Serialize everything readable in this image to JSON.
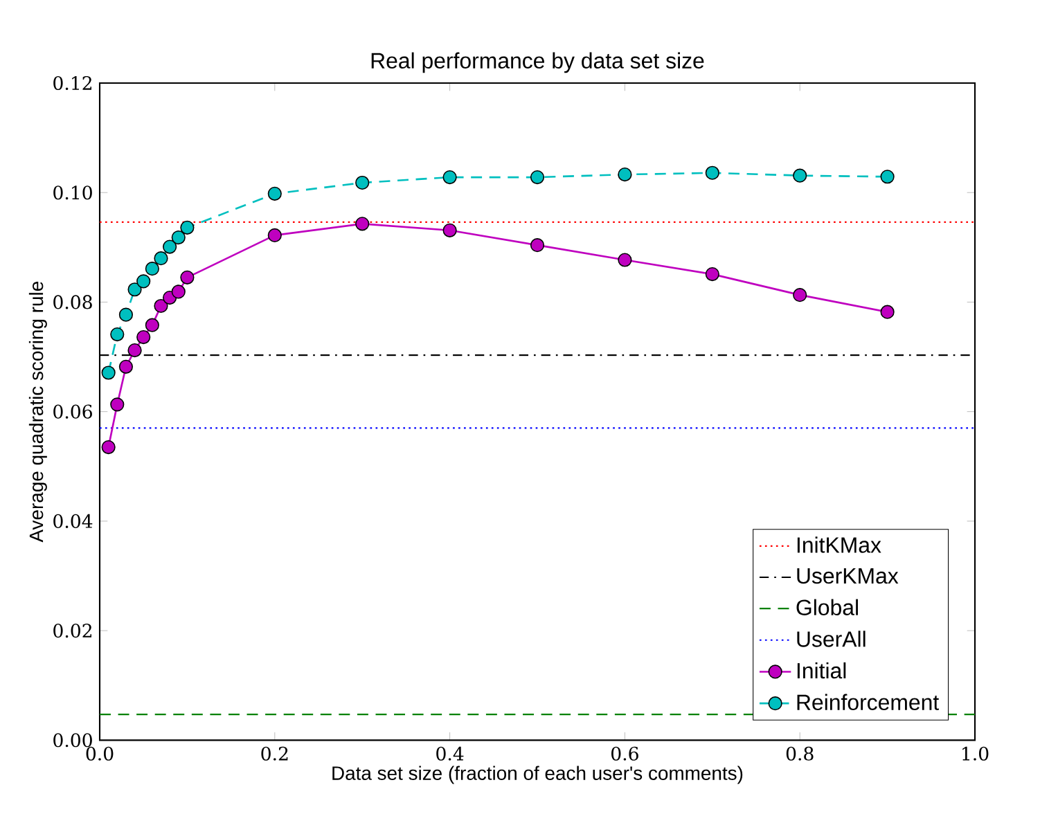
{
  "chart_data": {
    "type": "line",
    "title": "Real performance by data set size",
    "xlabel": "Data set size (fraction of each user's comments)",
    "ylabel": "Average quadratic scoring rule",
    "x": [
      0.01,
      0.02,
      0.03,
      0.04,
      0.05,
      0.06,
      0.07,
      0.08,
      0.09,
      0.1,
      0.2,
      0.3,
      0.4,
      0.5,
      0.6,
      0.7,
      0.8,
      0.9
    ],
    "series": [
      {
        "name": "Initial",
        "color": "#bf00bf",
        "line_style": "solid",
        "values": [
          0.0535,
          0.0613,
          0.0682,
          0.0712,
          0.0736,
          0.0758,
          0.0793,
          0.0808,
          0.0819,
          0.0845,
          0.0922,
          0.0943,
          0.0931,
          0.0904,
          0.0877,
          0.0851,
          0.0813,
          0.0782
        ]
      },
      {
        "name": "Reinforcement",
        "color": "#00bfbf",
        "line_style": "dashed",
        "values": [
          0.0671,
          0.0741,
          0.0777,
          0.0823,
          0.0838,
          0.0861,
          0.088,
          0.0901,
          0.0918,
          0.0936,
          0.0998,
          0.1018,
          0.1028,
          0.1028,
          0.1033,
          0.1036,
          0.1031,
          0.1029
        ]
      }
    ],
    "ref_lines": [
      {
        "axis": "y",
        "value": 0.0946,
        "label": "InitKMax",
        "color": "#ff0000",
        "line_style": "dotted"
      },
      {
        "axis": "y",
        "value": 0.0703,
        "label": "UserKMax",
        "color": "#000000",
        "line_style": "dashdot"
      },
      {
        "axis": "y",
        "value": 0.0047,
        "label": "Global",
        "color": "#008000",
        "line_style": "dashed"
      },
      {
        "axis": "y",
        "value": 0.057,
        "label": "UserAll",
        "color": "#0000ff",
        "line_style": "dotted"
      }
    ],
    "marker": "circle",
    "legend": "bottom right",
    "grid": false,
    "xlim": [
      0,
      1
    ],
    "ylim": [
      0,
      0.12
    ],
    "xticks": [
      {
        "value": 0,
        "label": "0.0"
      },
      {
        "value": 0.2,
        "label": "0.2"
      },
      {
        "value": 0.4,
        "label": "0.4"
      },
      {
        "value": 0.6,
        "label": "0.6"
      },
      {
        "value": 0.8,
        "label": "0.8"
      },
      {
        "value": 1,
        "label": "1.0"
      }
    ],
    "yticks": [
      {
        "value": 0,
        "label": "0.00"
      },
      {
        "value": 0.02,
        "label": "0.02"
      },
      {
        "value": 0.04,
        "label": "0.04"
      },
      {
        "value": 0.06,
        "label": "0.06"
      },
      {
        "value": 0.08,
        "label": "0.08"
      },
      {
        "value": 0.1,
        "label": "0.10"
      },
      {
        "value": 0.12,
        "label": "0.12"
      }
    ]
  }
}
